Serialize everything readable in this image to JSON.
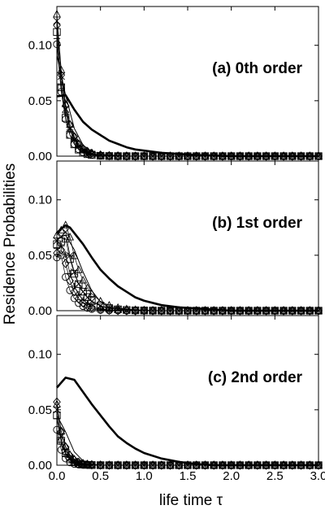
{
  "chart_data": {
    "type": "line",
    "ylabel": "Residence Probabilities",
    "xlabel": "life time τ",
    "x_ticks": [
      "0.0",
      "0.5",
      "1.0",
      "1.5",
      "2.0",
      "2.5",
      "3.0"
    ],
    "y_ticks": [
      "0.00",
      "0.05",
      "0.10"
    ],
    "xlim": [
      0,
      3.0
    ],
    "ylim": [
      0,
      0.135
    ],
    "marker_x": [
      0.0,
      0.05,
      0.1,
      0.15,
      0.2,
      0.25,
      0.3,
      0.35,
      0.4,
      0.5,
      0.6,
      0.7,
      0.8,
      0.9,
      1.0,
      1.1,
      1.2,
      1.3,
      1.4,
      1.5,
      1.6,
      1.7,
      1.8,
      1.9,
      2.0,
      2.1,
      2.2,
      2.3,
      2.4,
      2.5,
      2.6,
      2.7,
      2.8,
      2.9,
      3.0
    ],
    "panels": [
      {
        "label": "(a) 0th order",
        "thick_line": {
          "x": [
            0.0,
            0.1,
            0.2,
            0.3,
            0.4,
            0.5,
            0.6,
            0.7,
            0.8,
            0.9,
            1.0,
            1.2,
            1.4,
            1.6,
            2.0,
            2.5,
            3.0
          ],
          "y": [
            0.054,
            0.055,
            0.042,
            0.031,
            0.024,
            0.019,
            0.014,
            0.011,
            0.008,
            0.006,
            0.005,
            0.003,
            0.002,
            0.001,
            0.0,
            0.0,
            0.0
          ]
        },
        "thin_line": {
          "x": [
            0.0,
            0.1,
            0.2,
            0.3,
            0.4,
            0.5,
            0.6,
            0.8,
            1.0,
            1.5,
            3.0
          ],
          "y": [
            0.091,
            0.055,
            0.025,
            0.01,
            0.004,
            0.002,
            0.001,
            0.0,
            0.0,
            0.0,
            0.0
          ]
        },
        "series": [
          {
            "marker": "square",
            "y0": 0.112,
            "decay": 0.085
          },
          {
            "marker": "circle",
            "y0": 0.101,
            "decay": 0.09
          },
          {
            "marker": "triangle",
            "y0": 0.128,
            "decay": 0.1
          },
          {
            "marker": "diamond",
            "y0": 0.118,
            "decay": 0.105
          },
          {
            "marker": "cross",
            "y0": 0.122,
            "decay": 0.095
          },
          {
            "marker": "plus",
            "y0": 0.106,
            "decay": 0.1
          }
        ]
      },
      {
        "label": "(b) 1st order",
        "thick_line": {
          "x": [
            0.0,
            0.05,
            0.1,
            0.15,
            0.2,
            0.3,
            0.4,
            0.5,
            0.6,
            0.7,
            0.8,
            0.9,
            1.0,
            1.2,
            1.4,
            1.6,
            1.8,
            2.0,
            2.5,
            3.0
          ],
          "y": [
            0.07,
            0.074,
            0.077,
            0.075,
            0.07,
            0.06,
            0.048,
            0.037,
            0.029,
            0.022,
            0.017,
            0.012,
            0.009,
            0.005,
            0.003,
            0.002,
            0.001,
            0.0,
            0.0,
            0.0
          ]
        },
        "thin_line": {
          "x": [
            0.0,
            0.1,
            0.2,
            0.3,
            0.4,
            0.5,
            0.6,
            0.8,
            1.0,
            3.0
          ],
          "y": [
            0.065,
            0.068,
            0.055,
            0.035,
            0.018,
            0.008,
            0.003,
            0.001,
            0.0,
            0.0
          ]
        },
        "series": [
          {
            "marker": "triangle",
            "y0": 0.068,
            "peak": 0.079,
            "tp": 0.12,
            "decay": 0.17
          },
          {
            "marker": "square",
            "y0": 0.06,
            "peak": 0.065,
            "tp": 0.1,
            "decay": 0.15
          },
          {
            "marker": "diamond",
            "y0": 0.052,
            "peak": 0.056,
            "tp": 0.07,
            "decay": 0.11
          },
          {
            "marker": "circle",
            "y0": 0.048,
            "peak": 0.05,
            "tp": 0.05,
            "decay": 0.1
          },
          {
            "marker": "cross",
            "y0": 0.063,
            "peak": 0.071,
            "tp": 0.1,
            "decay": 0.14
          },
          {
            "marker": "plus",
            "y0": 0.056,
            "peak": 0.06,
            "tp": 0.08,
            "decay": 0.12
          }
        ]
      },
      {
        "label": "(c) 2nd order",
        "thick_line": {
          "x": [
            0.0,
            0.1,
            0.2,
            0.3,
            0.4,
            0.5,
            0.6,
            0.7,
            0.8,
            0.9,
            1.0,
            1.2,
            1.4,
            1.6,
            1.8,
            2.0,
            2.5,
            3.0
          ],
          "y": [
            0.07,
            0.079,
            0.077,
            0.066,
            0.055,
            0.045,
            0.035,
            0.026,
            0.02,
            0.015,
            0.011,
            0.006,
            0.003,
            0.001,
            0.0,
            0.0,
            0.0,
            0.0
          ]
        },
        "thin_line": {
          "x": [
            0.0,
            0.1,
            0.2,
            0.3,
            0.4,
            0.5,
            0.6,
            3.0
          ],
          "y": [
            0.045,
            0.03,
            0.012,
            0.004,
            0.001,
            0.0,
            0.0,
            0.0
          ]
        },
        "series": [
          {
            "marker": "diamond",
            "y0": 0.057,
            "decay": 0.08
          },
          {
            "marker": "triangle",
            "y0": 0.055,
            "decay": 0.085
          },
          {
            "marker": "square",
            "y0": 0.045,
            "decay": 0.07
          },
          {
            "marker": "circle",
            "y0": 0.032,
            "decay": 0.06
          },
          {
            "marker": "cross",
            "y0": 0.05,
            "decay": 0.075
          },
          {
            "marker": "plus",
            "y0": 0.042,
            "decay": 0.07
          }
        ]
      }
    ]
  }
}
